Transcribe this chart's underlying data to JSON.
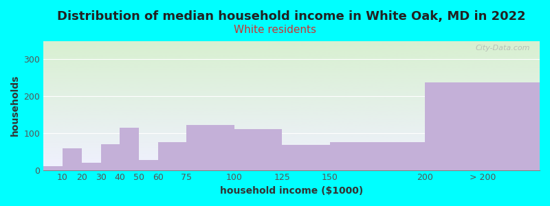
{
  "title": "Distribution of median household income in White Oak, MD in 2022",
  "subtitle": "White residents",
  "xlabel": "household income ($1000)",
  "ylabel": "households",
  "background_color": "#00FFFF",
  "bar_color": "#c4b0d8",
  "categories": [
    "10",
    "20",
    "30",
    "40",
    "50",
    "60",
    "75",
    "100",
    "125",
    "150",
    "200",
    "> 200"
  ],
  "left_edges": [
    0,
    10,
    20,
    30,
    40,
    50,
    60,
    75,
    100,
    125,
    150,
    200
  ],
  "right_edges": [
    10,
    20,
    30,
    40,
    50,
    60,
    75,
    100,
    125,
    150,
    200,
    260
  ],
  "values": [
    10,
    58,
    20,
    70,
    115,
    28,
    75,
    122,
    110,
    68,
    75,
    238
  ],
  "yticks": [
    0,
    100,
    200,
    300
  ],
  "ylim": [
    0,
    350
  ],
  "xlim": [
    0,
    260
  ],
  "xtick_positions": [
    10,
    20,
    30,
    40,
    50,
    60,
    75,
    100,
    125,
    150,
    200,
    230
  ],
  "xtick_labels": [
    "10",
    "20",
    "30",
    "40",
    "50",
    "60",
    "75",
    "100",
    "125",
    "150",
    "200",
    "> 200"
  ],
  "title_fontsize": 13,
  "subtitle_fontsize": 11,
  "subtitle_color": "#cc3333",
  "axis_label_fontsize": 10,
  "tick_fontsize": 9,
  "watermark": "City-Data.com",
  "gradient_top": "#d8f0d0",
  "gradient_bottom": "#f0f0ff"
}
